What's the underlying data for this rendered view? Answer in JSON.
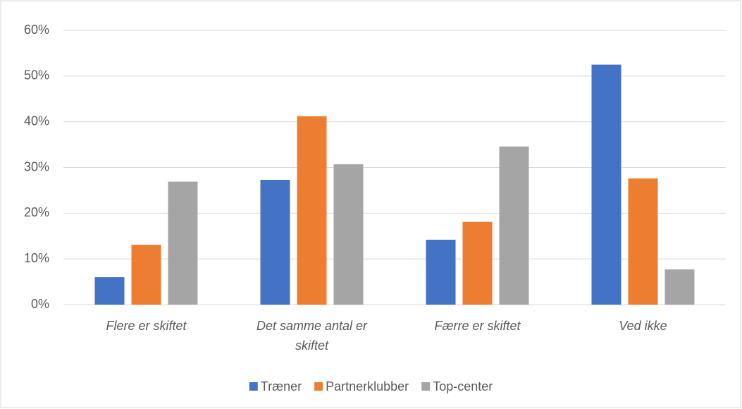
{
  "chart_data": {
    "type": "bar",
    "categories": [
      "Flere er skiftet",
      "Det samme antal er skiftet",
      "Færre er skiftet",
      "Ved ikke"
    ],
    "series": [
      {
        "name": "Træner",
        "color": "#4472c4",
        "values": [
          6.0,
          27.3,
          14.2,
          52.5
        ]
      },
      {
        "name": "Partnerklubber",
        "color": "#ed7d31",
        "values": [
          13.1,
          41.2,
          18.1,
          27.6
        ]
      },
      {
        "name": "Top-center",
        "color": "#a5a5a5",
        "values": [
          26.9,
          30.7,
          34.6,
          7.7
        ]
      }
    ],
    "ylim": [
      0,
      60
    ],
    "yticks": [
      {
        "value": 0,
        "label": "0%"
      },
      {
        "value": 10,
        "label": "10%"
      },
      {
        "value": 20,
        "label": "20%"
      },
      {
        "value": 30,
        "label": "30%"
      },
      {
        "value": 40,
        "label": "40%"
      },
      {
        "value": 50,
        "label": "50%"
      },
      {
        "value": 60,
        "label": "60%"
      }
    ],
    "grid": true,
    "legend": "bottom"
  }
}
